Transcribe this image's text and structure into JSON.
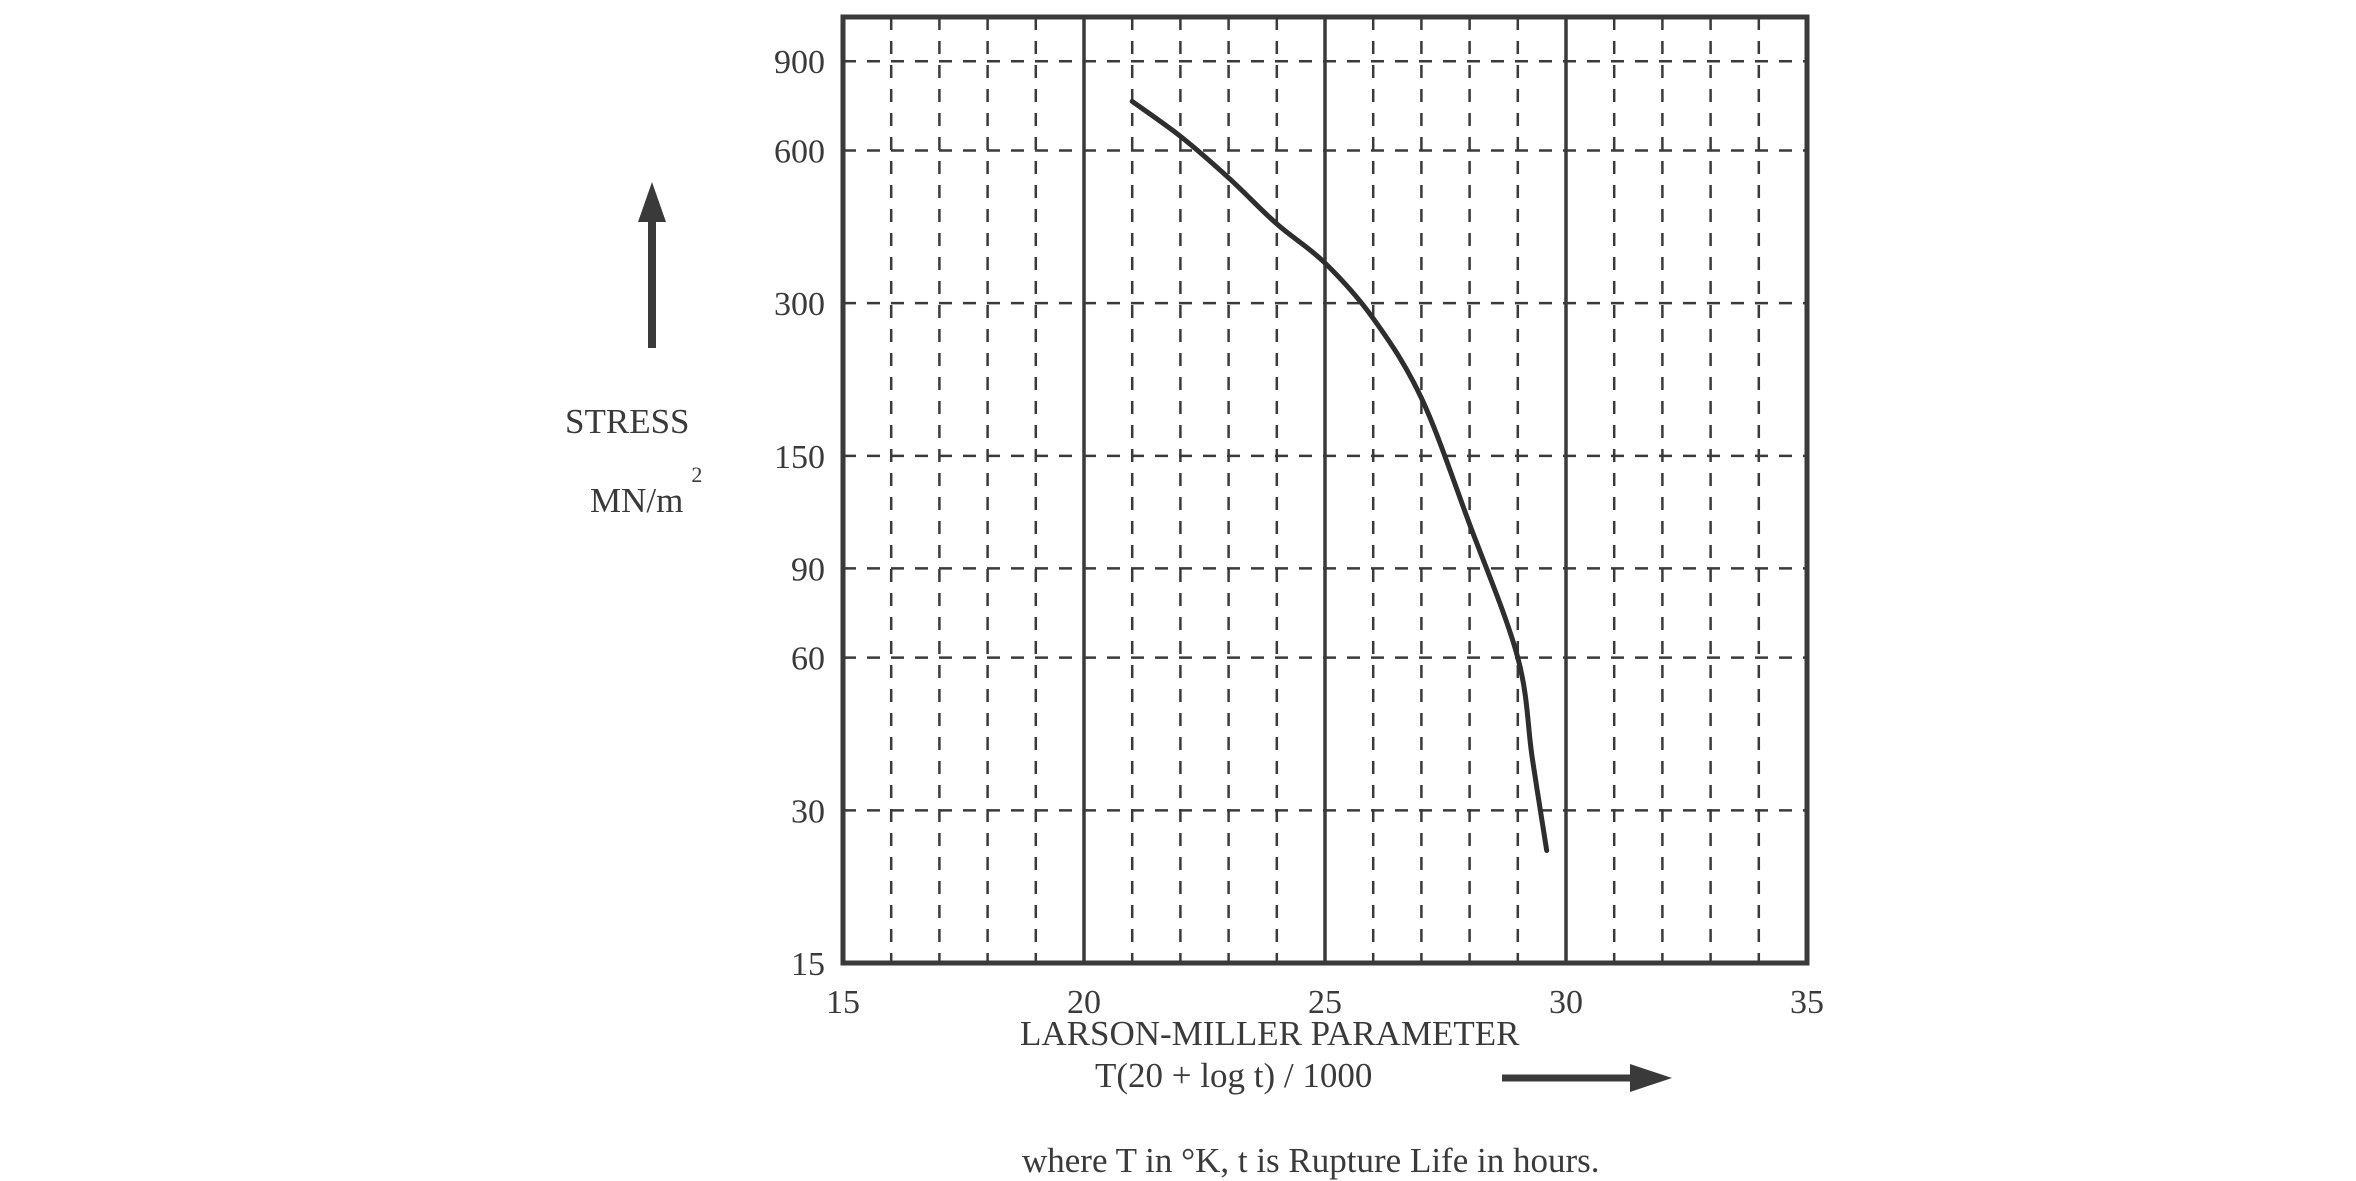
{
  "chart_data": {
    "type": "line",
    "x_ticks": [
      "15",
      "20",
      "25",
      "30",
      "35"
    ],
    "y_ticks": [
      "15",
      "30",
      "60",
      "90",
      "150",
      "300",
      "600",
      "900"
    ],
    "xlim": [
      15,
      35
    ],
    "ylim": [
      15,
      1100
    ],
    "y_scale": "log",
    "grid": true,
    "xlabel": "LARSON-MILLER PARAMETER",
    "xlabel_formula": "T(20 + log t) / 1000",
    "ylabel": "STRESS",
    "ylabel_unit": "MN/m",
    "ylabel_unit_sup": "2",
    "footnote": "where T in °K, t is Rupture Life in hours.",
    "series": [
      {
        "x": [
          21.0,
          22.0,
          23.0,
          24.0,
          25.0,
          26.0,
          27.0,
          28.0,
          29.0,
          29.3,
          29.6
        ],
        "y": [
          750,
          640,
          530,
          430,
          360,
          280,
          195,
          110,
          60,
          38,
          25
        ]
      }
    ]
  }
}
